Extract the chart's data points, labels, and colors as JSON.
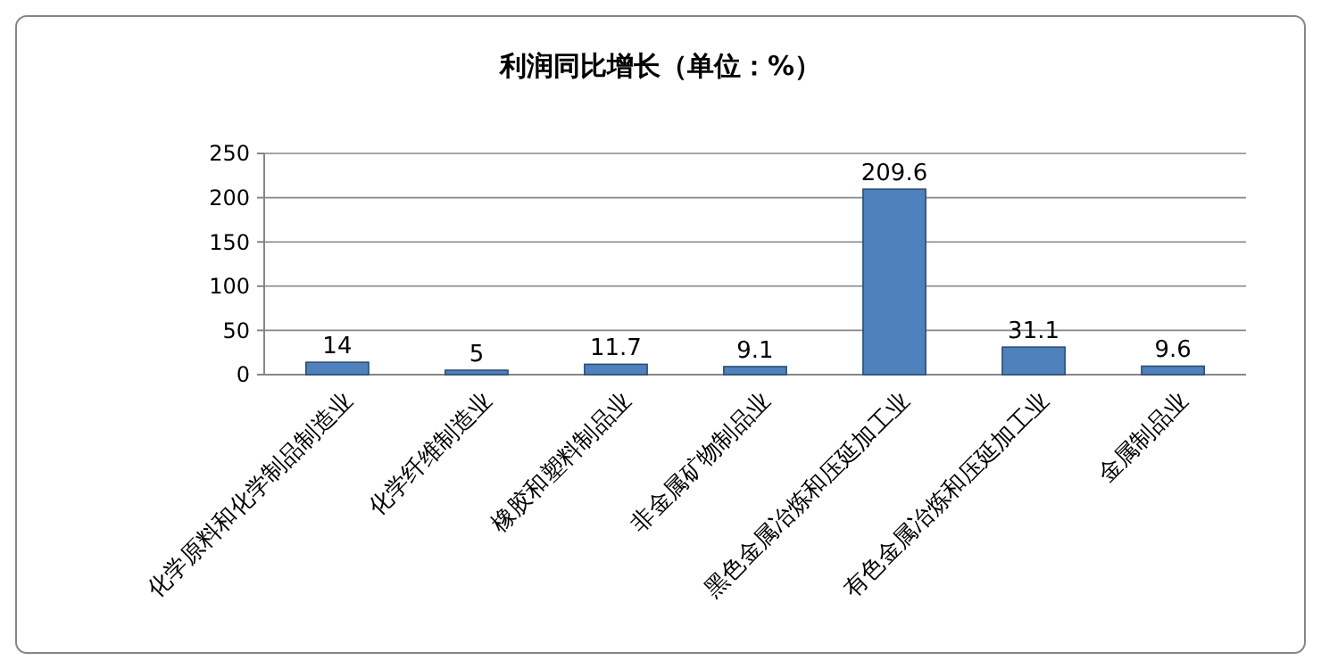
{
  "chart_data": {
    "type": "bar",
    "title": "利润同比增长（单位：%）",
    "categories": [
      "化学原料和化学制品制造业",
      "化学纤维制造业",
      "橡胶和塑料制品业",
      "非金属矿物制品业",
      "黑色金属冶炼和压延加工业",
      "有色金属冶炼和压延加工业",
      "金属制品业"
    ],
    "values": [
      14,
      5,
      11.7,
      9.1,
      209.6,
      31.1,
      9.6
    ],
    "color": "#4f81bd",
    "ylim": [
      0,
      250
    ],
    "yticks": [
      0,
      50,
      100,
      150,
      200,
      250
    ],
    "grid": "y",
    "data_labels": true
  }
}
